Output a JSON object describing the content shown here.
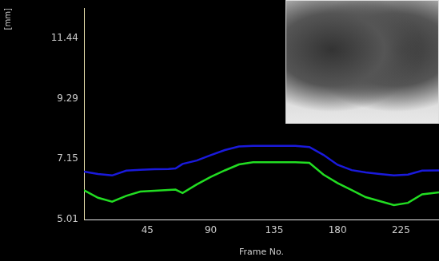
{
  "chart_data": {
    "type": "line",
    "x_label": "Frame No.",
    "y_label": "[mm]",
    "x": [
      0,
      10,
      20,
      30,
      40,
      50,
      60,
      65,
      70,
      80,
      90,
      100,
      110,
      120,
      135,
      150,
      160,
      170,
      180,
      190,
      200,
      210,
      220,
      230,
      240,
      252
    ],
    "series": [
      {
        "color": "#1a1adc",
        "values": [
          6.71,
          6.62,
          6.57,
          6.74,
          6.77,
          6.79,
          6.8,
          6.82,
          6.98,
          7.1,
          7.29,
          7.47,
          7.6,
          7.62,
          7.62,
          7.62,
          7.58,
          7.3,
          6.95,
          6.76,
          6.68,
          6.62,
          6.57,
          6.6,
          6.74,
          6.75
        ]
      },
      {
        "color": "#22dd22",
        "values": [
          6.05,
          5.78,
          5.64,
          5.85,
          6.0,
          6.03,
          6.06,
          6.07,
          5.95,
          6.25,
          6.52,
          6.75,
          6.96,
          7.04,
          7.04,
          7.04,
          7.02,
          6.6,
          6.3,
          6.05,
          5.8,
          5.66,
          5.52,
          5.6,
          5.9,
          5.97
        ]
      }
    ],
    "xlim": [
      0,
      252
    ],
    "xticks": [
      45,
      90,
      135,
      180,
      225
    ],
    "ylim": [
      5.01,
      12.5
    ],
    "yticks": [
      5.01,
      7.15,
      9.29,
      11.44
    ],
    "grid": false
  }
}
